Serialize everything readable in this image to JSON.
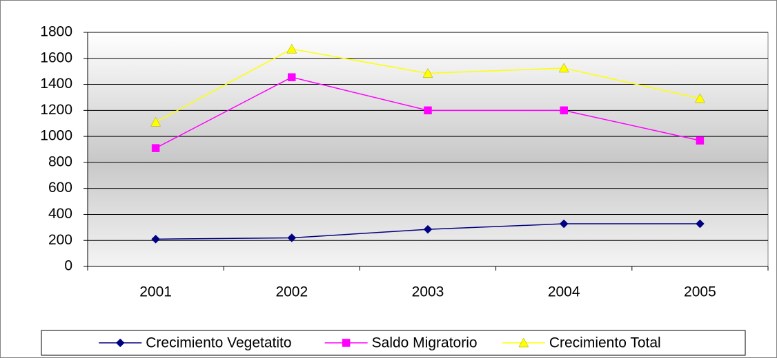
{
  "chart_data": {
    "type": "line",
    "categories": [
      "2001",
      "2002",
      "2003",
      "2004",
      "2005"
    ],
    "series": [
      {
        "name": "Crecimiento Vegetatito",
        "color": "#000080",
        "marker": "diamond",
        "values": [
          210,
          220,
          285,
          328,
          328
        ]
      },
      {
        "name": "Saldo Migratorio",
        "color": "#ff00ff",
        "marker": "square",
        "values": [
          910,
          1455,
          1200,
          1200,
          968
        ]
      },
      {
        "name": "Crecimiento Total",
        "color": "#ffff00",
        "marker": "triangle",
        "values": [
          1110,
          1672,
          1485,
          1525,
          1292
        ]
      }
    ],
    "ylim": [
      0,
      1800
    ],
    "yticks": [
      0,
      200,
      400,
      600,
      800,
      1000,
      1200,
      1400,
      1600,
      1800
    ],
    "grid": true,
    "legend": "bottom"
  }
}
